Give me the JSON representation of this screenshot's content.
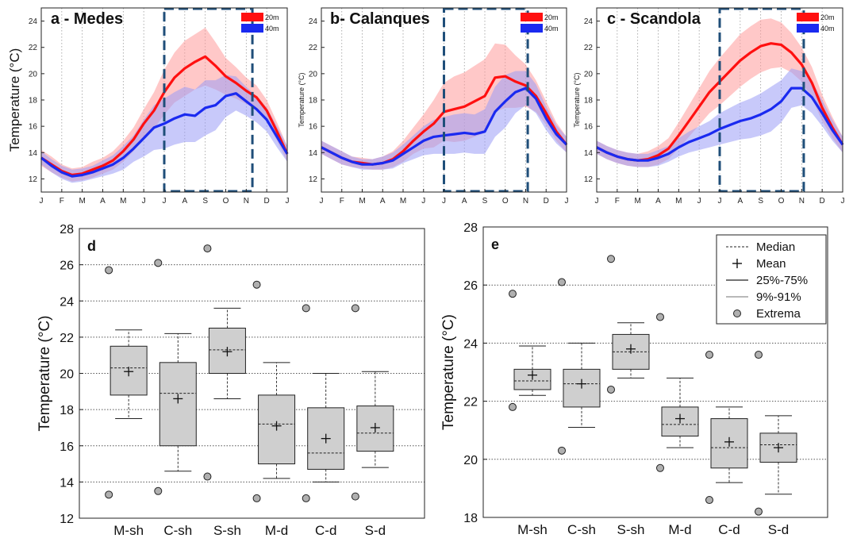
{
  "chart_data": [
    {
      "id": "a",
      "type": "line",
      "title": "a - Medes",
      "ylabel": "Temperature (°C)",
      "ylim": [
        11,
        25
      ],
      "yticks": [
        12,
        14,
        16,
        18,
        20,
        22,
        24
      ],
      "xlim": [
        0,
        12
      ],
      "categories": [
        "J",
        "F",
        "M",
        "A",
        "M",
        "J",
        "J",
        "A",
        "S",
        "O",
        "N",
        "D",
        "J"
      ],
      "highlight": [
        6,
        10.3
      ],
      "grid": "x-only",
      "legend": "top-right",
      "series": [
        {
          "name": "20m",
          "color": "#ff1010",
          "band_color": "#ff9a9a",
          "x": [
            0,
            0.5,
            1,
            1.5,
            2,
            2.5,
            3,
            3.5,
            4,
            4.5,
            5,
            5.5,
            6,
            6.5,
            7,
            7.5,
            8,
            8.5,
            9,
            9.5,
            10,
            10.5,
            11,
            11.5,
            12
          ],
          "values": [
            13.6,
            13.1,
            12.6,
            12.3,
            12.4,
            12.7,
            13.0,
            13.4,
            14.1,
            15.0,
            16.2,
            17.2,
            18.6,
            19.7,
            20.4,
            20.9,
            21.3,
            20.6,
            19.8,
            19.3,
            18.7,
            18.2,
            17.2,
            15.6,
            13.9
          ],
          "spread": [
            0.6,
            0.6,
            0.5,
            0.5,
            0.5,
            0.6,
            0.6,
            0.7,
            0.8,
            0.9,
            1.1,
            1.4,
            1.7,
            1.9,
            2.1,
            2.1,
            2.2,
            1.8,
            1.4,
            1.2,
            1.0,
            0.9,
            0.8,
            0.7,
            0.6
          ]
        },
        {
          "name": "40m",
          "color": "#1a2af0",
          "band_color": "#9a9df5",
          "x": [
            0,
            0.5,
            1,
            1.5,
            2,
            2.5,
            3,
            3.5,
            4,
            4.5,
            5,
            5.5,
            6,
            6.5,
            7,
            7.5,
            8,
            8.5,
            9,
            9.5,
            10,
            10.5,
            11,
            11.5,
            12
          ],
          "values": [
            13.6,
            13.0,
            12.5,
            12.2,
            12.3,
            12.5,
            12.8,
            13.1,
            13.6,
            14.3,
            15.1,
            15.9,
            16.2,
            16.6,
            16.9,
            16.8,
            17.4,
            17.6,
            18.3,
            18.5,
            17.9,
            17.3,
            16.5,
            15.2,
            13.9
          ],
          "spread": [
            0.5,
            0.5,
            0.5,
            0.5,
            0.5,
            0.5,
            0.6,
            0.7,
            0.9,
            1.0,
            1.4,
            1.7,
            1.9,
            2.0,
            2.1,
            2.0,
            2.1,
            1.9,
            1.6,
            1.3,
            1.1,
            1.0,
            0.9,
            0.8,
            0.6
          ]
        }
      ]
    },
    {
      "id": "b",
      "type": "line",
      "title": "b- Calanques",
      "ylabel": "Temperature (°C)",
      "ylim": [
        11,
        25
      ],
      "yticks": [
        12,
        14,
        16,
        18,
        20,
        22,
        24
      ],
      "xlim": [
        0,
        12
      ],
      "categories": [
        "J",
        "F",
        "M",
        "A",
        "M",
        "J",
        "J",
        "A",
        "S",
        "O",
        "N",
        "D",
        "J"
      ],
      "highlight": [
        6,
        10.1
      ],
      "grid": "x-only",
      "legend": "top-right",
      "series": [
        {
          "name": "20m",
          "color": "#ff1010",
          "band_color": "#ff9a9a",
          "x": [
            0,
            0.5,
            1,
            1.5,
            2,
            2.5,
            3,
            3.5,
            4,
            4.5,
            5,
            5.5,
            6,
            6.5,
            7,
            7.5,
            8,
            8.5,
            9,
            9.5,
            10,
            10.5,
            11,
            11.5,
            12
          ],
          "values": [
            14.4,
            14.0,
            13.6,
            13.3,
            13.2,
            13.1,
            13.2,
            13.5,
            14.1,
            14.9,
            15.6,
            16.2,
            17.1,
            17.3,
            17.5,
            17.9,
            18.3,
            19.7,
            19.8,
            19.4,
            19.1,
            18.3,
            17.0,
            15.6,
            14.6
          ],
          "spread": [
            0.5,
            0.5,
            0.5,
            0.4,
            0.4,
            0.4,
            0.5,
            0.6,
            0.8,
            1.0,
            1.3,
            1.8,
            2.2,
            2.5,
            2.6,
            2.7,
            2.8,
            2.6,
            2.4,
            2.0,
            1.6,
            1.2,
            0.9,
            0.7,
            0.6
          ]
        },
        {
          "name": "40m",
          "color": "#1a2af0",
          "band_color": "#9a9df5",
          "x": [
            0,
            0.5,
            1,
            1.5,
            2,
            2.5,
            3,
            3.5,
            4,
            4.5,
            5,
            5.5,
            6,
            6.5,
            7,
            7.5,
            8,
            8.5,
            9,
            9.5,
            10,
            10.5,
            11,
            11.5,
            12
          ],
          "values": [
            14.4,
            14.0,
            13.6,
            13.3,
            13.1,
            13.1,
            13.2,
            13.4,
            13.9,
            14.4,
            14.9,
            15.2,
            15.3,
            15.4,
            15.5,
            15.4,
            15.6,
            17.1,
            17.9,
            18.6,
            18.9,
            18.1,
            16.6,
            15.4,
            14.6
          ],
          "spread": [
            0.5,
            0.5,
            0.5,
            0.4,
            0.4,
            0.4,
            0.5,
            0.6,
            0.7,
            0.9,
            1.1,
            1.3,
            1.4,
            1.5,
            1.5,
            1.5,
            1.7,
            1.9,
            2.0,
            1.6,
            1.3,
            1.1,
            0.9,
            0.7,
            0.6
          ]
        }
      ]
    },
    {
      "id": "c",
      "type": "line",
      "title": "c - Scandola",
      "ylabel": "Temperature (°C)",
      "ylim": [
        11,
        25
      ],
      "yticks": [
        12,
        14,
        16,
        18,
        20,
        22,
        24
      ],
      "xlim": [
        0,
        12
      ],
      "categories": [
        "J",
        "F",
        "M",
        "A",
        "M",
        "J",
        "J",
        "A",
        "S",
        "O",
        "N",
        "D",
        "J"
      ],
      "highlight": [
        6,
        10.1
      ],
      "grid": "x-only",
      "legend": "top-right",
      "series": [
        {
          "name": "20m",
          "color": "#ff1010",
          "band_color": "#ff9a9a",
          "x": [
            0,
            0.5,
            1,
            1.5,
            2,
            2.5,
            3,
            3.5,
            4,
            4.5,
            5,
            5.5,
            6,
            6.5,
            7,
            7.5,
            8,
            8.5,
            9,
            9.5,
            10,
            10.5,
            11,
            11.5,
            12
          ],
          "values": [
            14.4,
            14.0,
            13.7,
            13.5,
            13.4,
            13.5,
            13.8,
            14.3,
            15.3,
            16.4,
            17.5,
            18.6,
            19.4,
            20.2,
            21.0,
            21.6,
            22.1,
            22.3,
            22.2,
            21.6,
            20.7,
            19.3,
            17.4,
            15.9,
            14.6
          ],
          "spread": [
            0.5,
            0.5,
            0.5,
            0.5,
            0.5,
            0.6,
            0.7,
            0.8,
            1.0,
            1.2,
            1.4,
            1.6,
            1.8,
            1.9,
            2.0,
            2.0,
            2.0,
            1.9,
            1.7,
            1.5,
            1.3,
            1.2,
            1.0,
            0.8,
            0.6
          ]
        },
        {
          "name": "40m",
          "color": "#1a2af0",
          "band_color": "#9a9df5",
          "x": [
            0,
            0.5,
            1,
            1.5,
            2,
            2.5,
            3,
            3.5,
            4,
            4.5,
            5,
            5.5,
            6,
            6.5,
            7,
            7.5,
            8,
            8.5,
            9,
            9.5,
            10,
            10.5,
            11,
            11.5,
            12
          ],
          "values": [
            14.4,
            14.0,
            13.7,
            13.5,
            13.4,
            13.4,
            13.6,
            13.9,
            14.4,
            14.8,
            15.1,
            15.4,
            15.8,
            16.1,
            16.4,
            16.6,
            16.9,
            17.3,
            17.9,
            18.9,
            18.9,
            18.2,
            17.0,
            15.7,
            14.6
          ],
          "spread": [
            0.5,
            0.5,
            0.5,
            0.5,
            0.5,
            0.5,
            0.6,
            0.6,
            0.7,
            0.8,
            0.9,
            1.0,
            1.2,
            1.3,
            1.4,
            1.5,
            1.6,
            1.7,
            1.6,
            1.5,
            1.3,
            1.2,
            1.0,
            0.8,
            0.6
          ]
        }
      ]
    },
    {
      "id": "d",
      "type": "box",
      "label": "d",
      "ylabel": "Temperature (°C)",
      "ylim": [
        12,
        28
      ],
      "yticks": [
        12,
        14,
        16,
        18,
        20,
        22,
        24,
        26,
        28
      ],
      "categories": [
        "M-sh",
        "C-sh",
        "S-sh",
        "M-d",
        "C-d",
        "S-d"
      ],
      "grid": "y-dotted",
      "boxes": [
        {
          "q1": 18.8,
          "median": 20.3,
          "q3": 21.5,
          "mean": 20.1,
          "whisker_low": 17.5,
          "whisker_high": 22.4,
          "min": 13.3,
          "max": 25.7
        },
        {
          "q1": 16.0,
          "median": 18.9,
          "q3": 20.6,
          "mean": 18.6,
          "whisker_low": 14.6,
          "whisker_high": 22.2,
          "min": 13.5,
          "max": 26.1
        },
        {
          "q1": 20.0,
          "median": 21.3,
          "q3": 22.5,
          "mean": 21.2,
          "whisker_low": 18.6,
          "whisker_high": 23.6,
          "min": 14.3,
          "max": 26.9
        },
        {
          "q1": 15.0,
          "median": 17.2,
          "q3": 18.8,
          "mean": 17.1,
          "whisker_low": 14.2,
          "whisker_high": 20.6,
          "min": 13.1,
          "max": 24.9
        },
        {
          "q1": 14.7,
          "median": 15.6,
          "q3": 18.1,
          "mean": 16.4,
          "whisker_low": 14.0,
          "whisker_high": 20.0,
          "min": 13.1,
          "max": 23.6
        },
        {
          "q1": 15.7,
          "median": 16.7,
          "q3": 18.2,
          "mean": 17.0,
          "whisker_low": 14.8,
          "whisker_high": 20.1,
          "min": 13.2,
          "max": 23.6
        }
      ]
    },
    {
      "id": "e",
      "type": "box",
      "label": "e",
      "ylabel": "Temperature (°C)",
      "ylim": [
        18,
        28
      ],
      "yticks": [
        18,
        20,
        22,
        24,
        26,
        28
      ],
      "categories": [
        "M-sh",
        "C-sh",
        "S-sh",
        "M-d",
        "C-d",
        "S-d"
      ],
      "grid": "y-dotted",
      "legend": "top-right",
      "legend_items": [
        "Median",
        "Mean",
        "25%-75%",
        "9%-91%",
        "Extrema"
      ],
      "boxes": [
        {
          "q1": 22.4,
          "median": 22.7,
          "q3": 23.1,
          "mean": 22.9,
          "whisker_low": 22.2,
          "whisker_high": 23.9,
          "min": 21.8,
          "max": 25.7
        },
        {
          "q1": 21.8,
          "median": 22.6,
          "q3": 23.1,
          "mean": 22.6,
          "whisker_low": 21.1,
          "whisker_high": 24.0,
          "min": 20.3,
          "max": 26.1
        },
        {
          "q1": 23.1,
          "median": 23.7,
          "q3": 24.3,
          "mean": 23.8,
          "whisker_low": 22.8,
          "whisker_high": 24.7,
          "min": 22.4,
          "max": 26.9
        },
        {
          "q1": 20.8,
          "median": 21.2,
          "q3": 21.8,
          "mean": 21.4,
          "whisker_low": 20.4,
          "whisker_high": 22.8,
          "min": 19.7,
          "max": 24.9
        },
        {
          "q1": 19.7,
          "median": 20.4,
          "q3": 21.4,
          "mean": 20.6,
          "whisker_low": 19.2,
          "whisker_high": 21.8,
          "min": 18.6,
          "max": 23.6
        },
        {
          "q1": 19.9,
          "median": 20.5,
          "q3": 20.9,
          "mean": 20.4,
          "whisker_low": 18.8,
          "whisker_high": 21.5,
          "min": 18.2,
          "max": 23.6
        }
      ]
    }
  ]
}
